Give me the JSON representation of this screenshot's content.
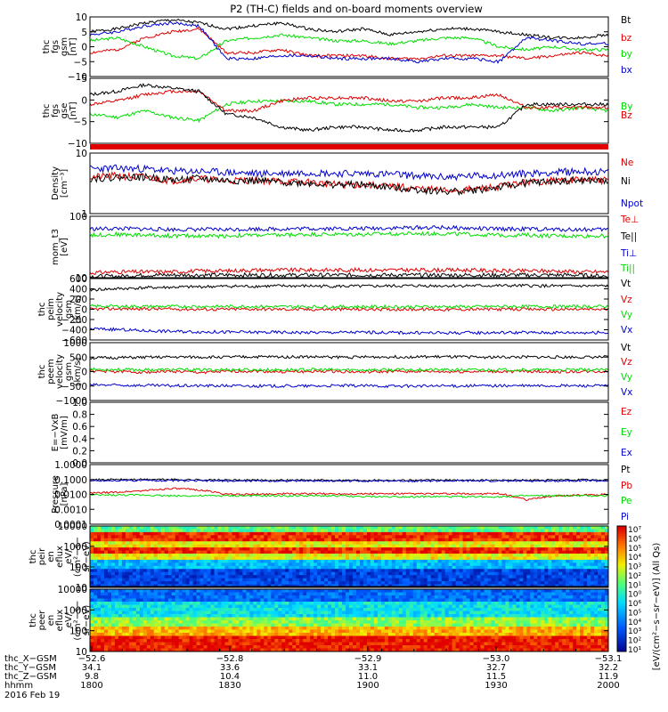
{
  "title": "P2 (TH-C) fields and on-board moments overview",
  "colors": {
    "black": "#000000",
    "red": "#e00000",
    "green": "#00dd00",
    "blue": "#0000cc"
  },
  "chart_data": [
    {
      "type": "line",
      "ylabel_lines": [
        "thc",
        "fgs",
        "gsm",
        "[nT]"
      ],
      "yticks": [
        "10",
        "5",
        "0",
        "−5",
        "−10"
      ],
      "ylim": [
        -10,
        10
      ],
      "series": [
        {
          "name": "Bt",
          "color": "black",
          "values": [
            5,
            6,
            8,
            9,
            8,
            6,
            7,
            8,
            6,
            5,
            6,
            4,
            5,
            6,
            6,
            5,
            4,
            3,
            3,
            4
          ]
        },
        {
          "name": "bz",
          "color": "red",
          "values": [
            -2,
            -1,
            3,
            5,
            6,
            -2,
            -2,
            -1,
            -3,
            -3,
            -3,
            -4,
            -4,
            -3,
            -3,
            -3,
            -4,
            -3,
            -2,
            -3
          ]
        },
        {
          "name": "by",
          "color": "green",
          "values": [
            2,
            3,
            0,
            -3,
            -4,
            2,
            3,
            4,
            3,
            2,
            2,
            1,
            2,
            3,
            3,
            0,
            -1,
            0,
            -1,
            -1
          ]
        },
        {
          "name": "bx",
          "color": "blue",
          "values": [
            4,
            5,
            7,
            8,
            7,
            -4,
            -4,
            -3,
            -3,
            -4,
            -4,
            -4,
            -5,
            -4,
            -4,
            -5,
            3,
            2,
            1,
            1
          ]
        }
      ],
      "legend": [
        "Bt",
        "bz",
        "by",
        "bx"
      ]
    },
    {
      "type": "line",
      "ylabel_lines": [
        "thc",
        "fgs",
        "gse",
        "[nT]"
      ],
      "yticks": [
        "5",
        "0",
        "−5",
        "−10"
      ],
      "ylim": [
        -12,
        8
      ],
      "series": [
        {
          "name": "By",
          "color": "green",
          "values": [
            -3,
            -4,
            -2,
            -4,
            -5,
            0,
            1,
            1,
            1,
            0,
            0,
            0,
            -1,
            -1,
            0,
            -1,
            -1,
            -2,
            -1,
            -2
          ]
        },
        {
          "name": "Bz",
          "color": "red",
          "values": [
            0,
            1,
            3,
            4,
            4,
            -2,
            -2,
            1,
            2,
            2,
            2,
            1,
            1,
            2,
            2,
            3,
            -1,
            -1,
            -1,
            -1
          ]
        },
        {
          "name": "Bx",
          "color": "black",
          "values": [
            3,
            4,
            6,
            5,
            4,
            -3,
            -4,
            -7,
            -8,
            -7,
            -7,
            -8,
            -8,
            -7,
            -7,
            -7,
            0,
            0,
            0,
            0
          ]
        }
      ],
      "legend": [
        "By",
        "Bz",
        "Bx"
      ]
    },
    {
      "type": "line",
      "ylabel_lines": [
        "Density",
        "[cm⁻³]"
      ],
      "yticks": [
        "10",
        "1"
      ],
      "yscale": "log",
      "ylim": [
        1,
        10
      ],
      "series": [
        {
          "name": "Ne",
          "color": "red",
          "values": [
            4.0,
            4.2,
            4.0,
            3.5,
            3.8,
            3.5,
            3.6,
            3.4,
            3.3,
            3.0,
            3.0,
            2.8,
            2.6,
            2.4,
            2.5,
            2.8,
            3.3,
            3.5,
            3.6,
            3.5
          ]
        },
        {
          "name": "Ni",
          "color": "black",
          "values": [
            3.8,
            4.0,
            4.0,
            3.6,
            3.8,
            3.5,
            3.5,
            3.3,
            3.2,
            3.0,
            3.0,
            2.7,
            2.5,
            2.3,
            2.4,
            2.7,
            3.2,
            3.4,
            3.5,
            3.4
          ]
        },
        {
          "name": "Npot",
          "color": "blue",
          "values": [
            5.5,
            5.6,
            5.5,
            5.0,
            5.0,
            4.8,
            4.6,
            4.6,
            4.8,
            4.6,
            4.6,
            4.5,
            4.2,
            4.0,
            4.2,
            4.3,
            4.6,
            4.8,
            5.0,
            4.8
          ]
        }
      ],
      "legend": [
        "Ne",
        "Ni",
        "Npot"
      ]
    },
    {
      "type": "line",
      "ylabel_lines": [
        "mom_t3",
        "[eV]"
      ],
      "yticks": [
        "100",
        "10"
      ],
      "yscale": "log",
      "ylim": [
        10,
        700
      ],
      "series": [
        {
          "name": "Te⊥",
          "color": "red",
          "values": [
            14,
            15,
            15,
            15,
            16,
            16,
            17,
            17,
            17,
            17,
            17,
            17,
            17,
            17,
            17,
            16,
            16,
            16,
            15,
            15
          ]
        },
        {
          "name": "Te||",
          "color": "black",
          "values": [
            11,
            11,
            12,
            12,
            12,
            12,
            12,
            12,
            12,
            12,
            12,
            12,
            12,
            12,
            12,
            12,
            12,
            12,
            12,
            11
          ]
        },
        {
          "name": "Ti⊥",
          "color": "blue",
          "values": [
            290,
            300,
            290,
            280,
            280,
            280,
            290,
            290,
            300,
            300,
            300,
            310,
            320,
            320,
            300,
            290,
            290,
            280,
            280,
            280
          ]
        },
        {
          "name": "Ti||",
          "color": "green",
          "values": [
            190,
            200,
            190,
            180,
            180,
            180,
            190,
            190,
            200,
            200,
            200,
            210,
            210,
            210,
            200,
            190,
            190,
            180,
            180,
            180
          ]
        }
      ],
      "legend": [
        "Te⊥",
        "Te||",
        "Ti⊥",
        "Ti||"
      ]
    },
    {
      "type": "line",
      "ylabel_lines": [
        "thc",
        "peim",
        "velocity",
        "gsm",
        "[km/s]"
      ],
      "yticks": [
        "600",
        "400",
        "200",
        "0",
        "−200",
        "−400",
        "−600"
      ],
      "ylim": [
        -600,
        600
      ],
      "series": [
        {
          "name": "Vt",
          "color": "black",
          "values": [
            380,
            400,
            420,
            430,
            440,
            450,
            450,
            455,
            455,
            450,
            450,
            455,
            460,
            460,
            460,
            460,
            460,
            455,
            455,
            455
          ]
        },
        {
          "name": "Vz",
          "color": "red",
          "values": [
            0,
            10,
            10,
            5,
            0,
            0,
            5,
            0,
            -5,
            0,
            0,
            0,
            0,
            -5,
            0,
            0,
            0,
            0,
            0,
            0
          ]
        },
        {
          "name": "Vy",
          "color": "green",
          "values": [
            60,
            60,
            55,
            55,
            55,
            55,
            55,
            50,
            50,
            50,
            50,
            50,
            50,
            50,
            50,
            55,
            55,
            55,
            55,
            55
          ]
        },
        {
          "name": "Vx",
          "color": "blue",
          "values": [
            -380,
            -395,
            -420,
            -430,
            -440,
            -445,
            -450,
            -450,
            -455,
            -450,
            -450,
            -455,
            -460,
            -460,
            -460,
            -455,
            -455,
            -455,
            -455,
            -455
          ]
        }
      ],
      "legend": [
        "Vt",
        "Vz",
        "Vy",
        "Vx"
      ]
    },
    {
      "type": "line",
      "ylabel_lines": [
        "thc",
        "peem",
        "velocity",
        "gsm",
        "[km/s]"
      ],
      "yticks": [
        "1000",
        "500",
        "0",
        "−500",
        "−1000"
      ],
      "ylim": [
        -1000,
        1000
      ],
      "series": [
        {
          "name": "Vt",
          "color": "black",
          "values": [
            470,
            480,
            490,
            500,
            500,
            500,
            510,
            510,
            510,
            500,
            500,
            510,
            510,
            510,
            500,
            500,
            500,
            500,
            500,
            500
          ]
        },
        {
          "name": "Vz",
          "color": "red",
          "values": [
            20,
            0,
            -20,
            10,
            -30,
            0,
            20,
            -10,
            0,
            10,
            -20,
            0,
            10,
            -10,
            0,
            0,
            10,
            -10,
            0,
            0
          ]
        },
        {
          "name": "Vy",
          "color": "green",
          "values": [
            80,
            70,
            60,
            70,
            60,
            70,
            60,
            60,
            70,
            60,
            60,
            60,
            70,
            60,
            60,
            60,
            60,
            60,
            60,
            60
          ]
        },
        {
          "name": "Vx",
          "color": "blue",
          "values": [
            -460,
            -470,
            -480,
            -490,
            -490,
            -490,
            -500,
            -500,
            -500,
            -490,
            -490,
            -500,
            -500,
            -500,
            -490,
            -490,
            -490,
            -490,
            -490,
            -490
          ]
        }
      ],
      "legend": [
        "Vt",
        "Vz",
        "Vy",
        "Vx"
      ]
    },
    {
      "type": "line",
      "ylabel_lines": [
        "E=−VxB",
        "[mV/m]"
      ],
      "yticks": [
        "1.0",
        "0.8",
        "0.6",
        "0.4",
        "0.2",
        "0.0"
      ],
      "ylim": [
        0,
        1
      ],
      "series": [],
      "legend": [
        "Ez",
        "Ey",
        "Ex"
      ]
    },
    {
      "type": "line",
      "ylabel_lines": [
        "Pressure",
        "[nPa]"
      ],
      "yticks": [
        "1.0000",
        "0.1000",
        "0.0100",
        "0.0010",
        "0.0001"
      ],
      "yscale": "log",
      "ylim": [
        0.0001,
        1
      ],
      "series": [
        {
          "name": "Pt",
          "color": "black",
          "values": [
            0.095,
            0.1,
            0.1,
            0.1,
            0.095,
            0.09,
            0.09,
            0.09,
            0.09,
            0.09,
            0.09,
            0.09,
            0.09,
            0.09,
            0.09,
            0.09,
            0.09,
            0.09,
            0.095,
            0.09
          ]
        },
        {
          "name": "Pb",
          "color": "red",
          "values": [
            0.012,
            0.014,
            0.018,
            0.025,
            0.02,
            0.01,
            0.01,
            0.011,
            0.011,
            0.011,
            0.011,
            0.011,
            0.011,
            0.011,
            0.011,
            0.011,
            0.004,
            0.008,
            0.009,
            0.01
          ]
        },
        {
          "name": "Pe",
          "color": "green",
          "values": [
            0.009,
            0.009,
            0.009,
            0.008,
            0.008,
            0.008,
            0.008,
            0.008,
            0.008,
            0.008,
            0.007,
            0.007,
            0.007,
            0.007,
            0.007,
            0.007,
            0.008,
            0.008,
            0.008,
            0.008
          ]
        },
        {
          "name": "Pi",
          "color": "blue",
          "values": [
            0.08,
            0.085,
            0.085,
            0.085,
            0.08,
            0.08,
            0.08,
            0.08,
            0.08,
            0.08,
            0.08,
            0.08,
            0.08,
            0.08,
            0.08,
            0.08,
            0.08,
            0.08,
            0.085,
            0.08
          ]
        }
      ],
      "legend": [
        "Pt",
        "Pb",
        "Pe",
        "Pi"
      ]
    },
    {
      "type": "heatmap",
      "ylabel_lines": [
        "thc",
        "peir",
        "en",
        "eflux",
        "eV/",
        "(cm²−s−",
        "sr−eV)"
      ],
      "yticks": [
        "10000",
        "1000",
        "100",
        "10"
      ],
      "yscale": "log",
      "ylim": [
        5,
        30000
      ]
    },
    {
      "type": "heatmap",
      "ylabel_lines": [
        "thc",
        "peer",
        "en",
        "eflux",
        "eV/",
        "(cm²−s−",
        "sr−eV)"
      ],
      "yticks": [
        "10000",
        "1000",
        "100",
        "10"
      ],
      "yscale": "log",
      "ylim": [
        5,
        30000
      ]
    }
  ],
  "colorbar": {
    "labels": [
      "10⁷",
      "10⁶",
      "10⁵",
      "10⁴",
      "10³",
      "10²",
      "10¹",
      "10⁰",
      "10⁶",
      "10⁵",
      "10⁴",
      "10³",
      "10²",
      "10¹"
    ],
    "title": "[eV/(cm²−s−sr−eV)] (All Qs)"
  },
  "xaxis": {
    "rows": [
      {
        "label": "thc_X−GSM",
        "values": [
          "−52.6",
          "−52.8",
          "−52.9",
          "−53.0",
          "−53.1"
        ]
      },
      {
        "label": "thc_Y−GSM",
        "values": [
          "34.1",
          "33.6",
          "33.1",
          "32.7",
          "32.2"
        ]
      },
      {
        "label": "thc_Z−GSM",
        "values": [
          "9.8",
          "10.4",
          "11.0",
          "11.5",
          "11.9"
        ]
      },
      {
        "label": "hhmm",
        "values": [
          "1800",
          "1830",
          "1900",
          "1930",
          "2000"
        ]
      }
    ],
    "date": "2016 Feb 19"
  }
}
